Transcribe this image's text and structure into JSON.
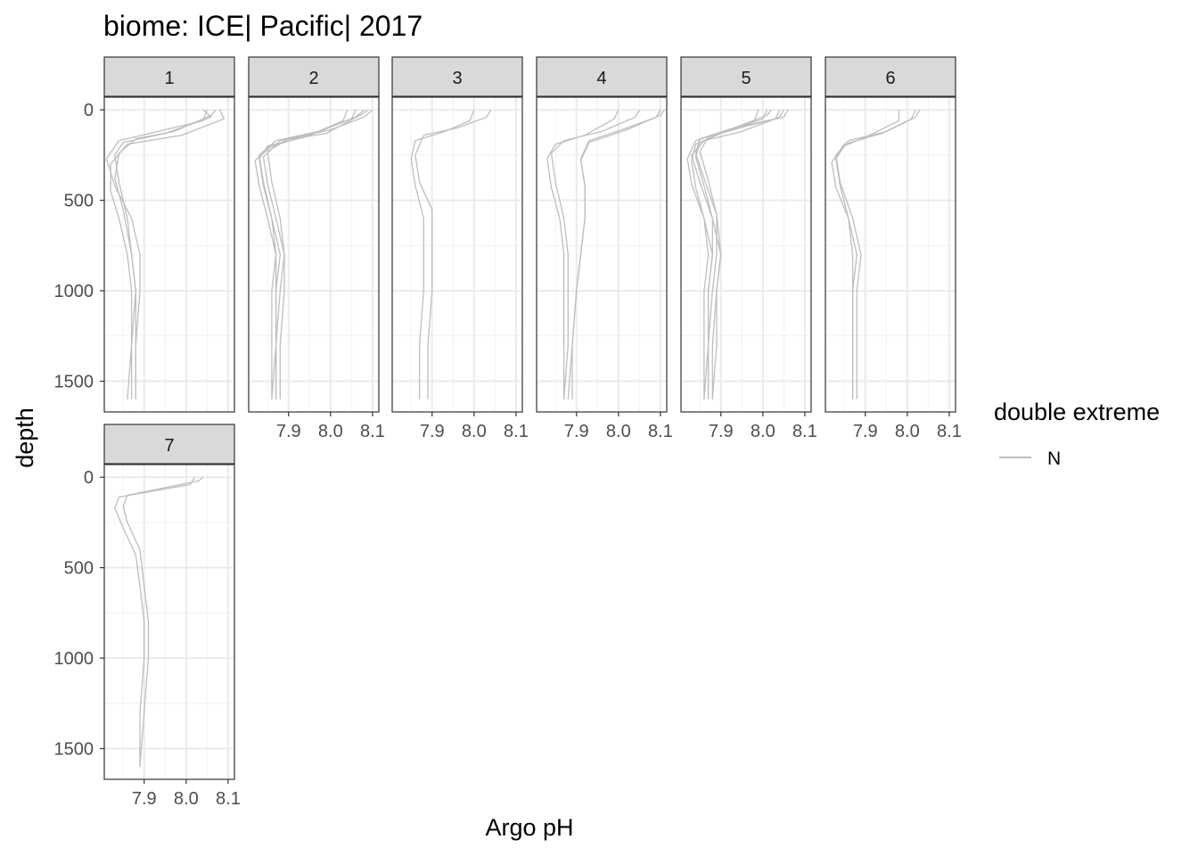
{
  "chart_data": {
    "type": "line",
    "title": "biome: ICE| Pacific| 2017",
    "xlabel": "Argo pH",
    "ylabel": "depth",
    "xlim": [
      7.805,
      8.115
    ],
    "ylim": [
      1670,
      -70
    ],
    "x_ticks": [
      7.9,
      8.0,
      8.1
    ],
    "x_tick_labels": [
      "7.9",
      "8.0",
      "8.1"
    ],
    "y_ticks": [
      0,
      500,
      1000,
      1500
    ],
    "y_tick_labels": [
      "0",
      "500",
      "1000",
      "1500"
    ],
    "grid": true,
    "legend": {
      "title": "double extreme",
      "entries": [
        {
          "label": "N",
          "color": "#bebebe"
        }
      ],
      "position": "right"
    },
    "line_color": "#bebebe",
    "panels": [
      {
        "label": "1",
        "profiles": [
          {
            "x": [
              8.04,
              8.06,
              7.95,
              7.85,
              7.83,
              7.84,
              7.86,
              7.87,
              7.88,
              7.88,
              7.88
            ],
            "y": [
              0,
              40,
              130,
              180,
              250,
              400,
              600,
              800,
              1000,
              1300,
              1600
            ]
          },
          {
            "x": [
              8.07,
              8.06,
              7.97,
              7.88,
              7.84,
              7.83,
              7.85,
              7.87,
              7.88,
              7.87,
              7.87
            ],
            "y": [
              0,
              30,
              120,
              160,
              240,
              380,
              550,
              800,
              1000,
              1300,
              1600
            ]
          },
          {
            "x": [
              8.08,
              8.09,
              7.99,
              7.86,
              7.82,
              7.82,
              7.84,
              7.86,
              7.87,
              7.87,
              7.86
            ],
            "y": [
              0,
              50,
              140,
              190,
              300,
              450,
              600,
              800,
              1000,
              1300,
              1600
            ]
          },
          {
            "x": [
              8.05,
              8.04,
              7.95,
              7.84,
              7.81,
              7.83,
              7.87,
              7.89,
              7.89,
              7.88,
              7.88
            ],
            "y": [
              0,
              60,
              110,
              170,
              270,
              420,
              600,
              800,
              1000,
              1300,
              1600
            ]
          }
        ]
      },
      {
        "label": "2",
        "profiles": [
          {
            "x": [
              8.08,
              8.06,
              7.97,
              7.87,
              7.83,
              7.84,
              7.86,
              7.88,
              7.87,
              7.87,
              7.86
            ],
            "y": [
              0,
              40,
              120,
              170,
              250,
              400,
              600,
              800,
              1000,
              1300,
              1600
            ]
          },
          {
            "x": [
              8.09,
              8.07,
              7.99,
              7.88,
              7.84,
              7.85,
              7.87,
              7.89,
              7.88,
              7.87,
              7.87
            ],
            "y": [
              0,
              30,
              130,
              170,
              260,
              410,
              600,
              800,
              1000,
              1300,
              1600
            ]
          },
          {
            "x": [
              8.06,
              8.05,
              7.95,
              7.86,
              7.82,
              7.83,
              7.85,
              7.87,
              7.86,
              7.86,
              7.86
            ],
            "y": [
              0,
              50,
              140,
              200,
              280,
              420,
              600,
              800,
              1000,
              1300,
              1600
            ]
          },
          {
            "x": [
              8.1,
              8.08,
              8.0,
              7.9,
              7.85,
              7.86,
              7.88,
              7.89,
              7.89,
              7.88,
              7.88
            ],
            "y": [
              0,
              40,
              110,
              160,
              230,
              400,
              600,
              800,
              1000,
              1300,
              1600
            ]
          },
          {
            "x": [
              8.04,
              8.03,
              7.94,
              7.85,
              7.83,
              7.84,
              7.86,
              7.87,
              7.87,
              7.87,
              7.87
            ],
            "y": [
              0,
              60,
              150,
              200,
              270,
              420,
              600,
              800,
              1000,
              1300,
              1600
            ]
          }
        ]
      },
      {
        "label": "3",
        "profiles": [
          {
            "x": [
              8.04,
              8.03,
              7.96,
              7.88,
              7.86,
              7.87,
              7.9,
              7.9,
              7.9,
              7.89,
              7.89
            ],
            "y": [
              0,
              40,
              100,
              140,
              250,
              400,
              550,
              800,
              1000,
              1300,
              1600
            ]
          },
          {
            "x": [
              8.0,
              7.99,
              7.93,
              7.86,
              7.85,
              7.86,
              7.88,
              7.88,
              7.88,
              7.87,
              7.87
            ],
            "y": [
              0,
              60,
              120,
              170,
              270,
              420,
              600,
              800,
              1000,
              1300,
              1600
            ]
          }
        ]
      },
      {
        "label": "4",
        "profiles": [
          {
            "x": [
              8.1,
              8.09,
              8.02,
              7.93,
              7.91,
              7.92,
              7.92,
              7.91,
              7.9,
              7.89,
              7.88
            ],
            "y": [
              0,
              40,
              100,
              170,
              270,
              420,
              600,
              800,
              1000,
              1300,
              1600
            ]
          },
          {
            "x": [
              8.11,
              8.1,
              8.02,
              7.93,
              7.91,
              7.92,
              7.92,
              7.91,
              7.9,
              7.89,
              7.89
            ],
            "y": [
              0,
              30,
              110,
              180,
              280,
              420,
              600,
              800,
              1000,
              1300,
              1600
            ]
          },
          {
            "x": [
              8.05,
              8.04,
              7.96,
              7.87,
              7.84,
              7.85,
              7.87,
              7.88,
              7.88,
              7.88,
              7.87
            ],
            "y": [
              0,
              40,
              120,
              170,
              240,
              400,
              600,
              800,
              1000,
              1300,
              1600
            ]
          },
          {
            "x": [
              8.0,
              7.99,
              7.92,
              7.85,
              7.83,
              7.84,
              7.86,
              7.87,
              7.87,
              7.87,
              7.87
            ],
            "y": [
              0,
              50,
              140,
              190,
              270,
              430,
              600,
              800,
              1000,
              1300,
              1600
            ]
          }
        ]
      },
      {
        "label": "5",
        "profiles": [
          {
            "x": [
              8.05,
              8.04,
              7.95,
              7.86,
              7.83,
              7.85,
              7.88,
              7.9,
              7.89,
              7.88,
              7.88
            ],
            "y": [
              0,
              40,
              120,
              170,
              250,
              400,
              600,
              800,
              1000,
              1300,
              1600
            ]
          },
          {
            "x": [
              8.04,
              8.03,
              7.93,
              7.85,
              7.84,
              7.86,
              7.89,
              7.9,
              7.89,
              7.89,
              7.88
            ],
            "y": [
              0,
              50,
              100,
              160,
              240,
              380,
              580,
              800,
              1000,
              1300,
              1600
            ]
          },
          {
            "x": [
              8.02,
              8.01,
              7.92,
              7.84,
              7.82,
              7.83,
              7.86,
              7.88,
              7.87,
              7.87,
              7.87
            ],
            "y": [
              0,
              30,
              110,
              170,
              270,
              410,
              600,
              800,
              1000,
              1300,
              1600
            ]
          },
          {
            "x": [
              7.99,
              7.98,
              7.9,
              7.84,
              7.83,
              7.84,
              7.86,
              7.87,
              7.86,
              7.86,
              7.86
            ],
            "y": [
              0,
              60,
              130,
              190,
              280,
              430,
              600,
              800,
              1000,
              1300,
              1600
            ]
          },
          {
            "x": [
              8.06,
              8.05,
              7.96,
              7.87,
              7.85,
              7.87,
              7.89,
              7.89,
              7.88,
              7.87,
              7.87
            ],
            "y": [
              0,
              40,
              90,
              150,
              230,
              390,
              580,
              800,
              1000,
              1300,
              1600
            ]
          },
          {
            "x": [
              8.01,
              8.0,
              7.91,
              7.85,
              7.84,
              7.86,
              7.88,
              7.88,
              7.87,
              7.87,
              7.86
            ],
            "y": [
              0,
              50,
              120,
              180,
              260,
              420,
              600,
              800,
              1000,
              1300,
              1600
            ]
          }
        ]
      },
      {
        "label": "6",
        "profiles": [
          {
            "x": [
              8.03,
              8.02,
              7.95,
              7.86,
              7.83,
              7.84,
              7.87,
              7.89,
              7.88,
              7.88,
              7.88
            ],
            "y": [
              0,
              40,
              120,
              170,
              250,
              400,
              600,
              800,
              1000,
              1300,
              1600
            ]
          },
          {
            "x": [
              8.02,
              8.01,
              7.94,
              7.85,
              7.82,
              7.83,
              7.86,
              7.88,
              7.87,
              7.87,
              7.87
            ],
            "y": [
              0,
              50,
              130,
              190,
              290,
              430,
              600,
              800,
              1000,
              1300,
              1600
            ]
          },
          {
            "x": [
              7.98,
              7.98,
              7.91,
              7.85,
              7.83,
              7.84,
              7.86,
              7.87,
              7.87,
              7.87,
              7.87
            ],
            "y": [
              0,
              60,
              140,
              200,
              270,
              420,
              600,
              800,
              1000,
              1300,
              1600
            ]
          }
        ]
      },
      {
        "label": "7",
        "profiles": [
          {
            "x": [
              8.04,
              8.03,
              7.86,
              7.85,
              7.86,
              7.89,
              7.9,
              7.91,
              7.91,
              7.9,
              7.89
            ],
            "y": [
              0,
              20,
              100,
              160,
              250,
              400,
              600,
              800,
              1000,
              1300,
              1600
            ]
          },
          {
            "x": [
              8.02,
              8.01,
              7.84,
              7.83,
              7.85,
              7.88,
              7.89,
              7.9,
              7.9,
              7.89,
              7.89
            ],
            "y": [
              0,
              40,
              110,
              170,
              280,
              430,
              600,
              800,
              1000,
              1300,
              1600
            ]
          }
        ]
      }
    ]
  }
}
